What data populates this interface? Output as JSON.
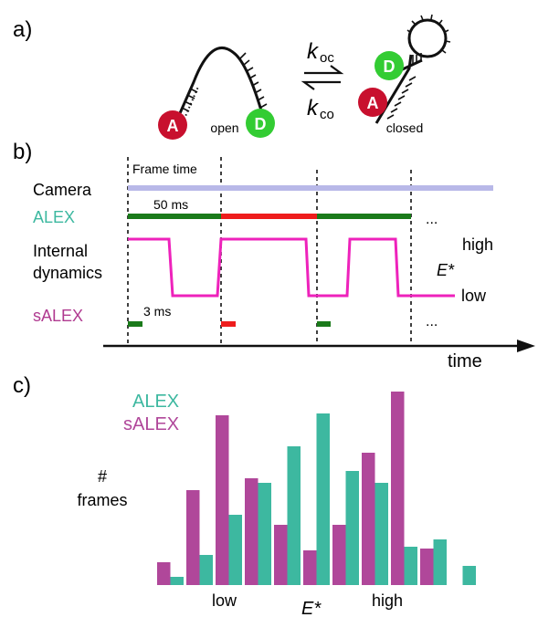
{
  "panel_a": {
    "label": "a)",
    "state_open_label": "open",
    "state_closed_label": "closed",
    "acceptor_letter": "A",
    "donor_letter": "D",
    "rate_forward": {
      "main": "k",
      "sub": "oc"
    },
    "rate_backward": {
      "main": "k",
      "sub": "co"
    },
    "colors": {
      "acceptor": "#c8102e",
      "donor": "#33cc33",
      "donor_text": "#ffffff"
    }
  },
  "panel_b": {
    "label": "b)",
    "row_labels": {
      "camera": "Camera",
      "alex": "ALEX",
      "internal_line1": "Internal",
      "internal_line2": "dynamics",
      "salex": "sALEX"
    },
    "frame_time_label": "Frame time",
    "alex_duration_label": "50 ms",
    "salex_duration_label": "3 ms",
    "level_high": "high",
    "level_low": "low",
    "efret_symbol": "E*",
    "ellipsis": "...",
    "time_axis_label": "time",
    "frame_segments": [
      "green",
      "red",
      "green"
    ],
    "dynamics_levels": [
      "high",
      "low",
      "high",
      "low",
      "high",
      "low"
    ],
    "colors": {
      "camera": "#b8b8e8",
      "alex_green": "#1a7a1a",
      "alex_red": "#ee1c1c",
      "dynamics": "#ee22bb",
      "alex_text": "#3db8a0",
      "salex_text": "#b03a90"
    }
  },
  "panel_c": {
    "label": "c)",
    "legend_alex": "ALEX",
    "legend_salex": "sALEX",
    "ylabel_line1": "#",
    "ylabel_line2": "frames",
    "xlabel": "E*",
    "x_low_label": "low",
    "x_high_label": "high",
    "colors": {
      "alex": "#3db8a0",
      "salex": "#b0479a"
    }
  },
  "chart_data": {
    "type": "bar",
    "xlabel": "E*",
    "ylabel": "# frames",
    "series": [
      {
        "name": "sALEX",
        "values": [
          25,
          104,
          186,
          117,
          66,
          38,
          66,
          145,
          212,
          40
        ]
      },
      {
        "name": "ALEX",
        "values": [
          9,
          33,
          77,
          112,
          152,
          188,
          125,
          112,
          42,
          50,
          21
        ]
      }
    ]
  }
}
